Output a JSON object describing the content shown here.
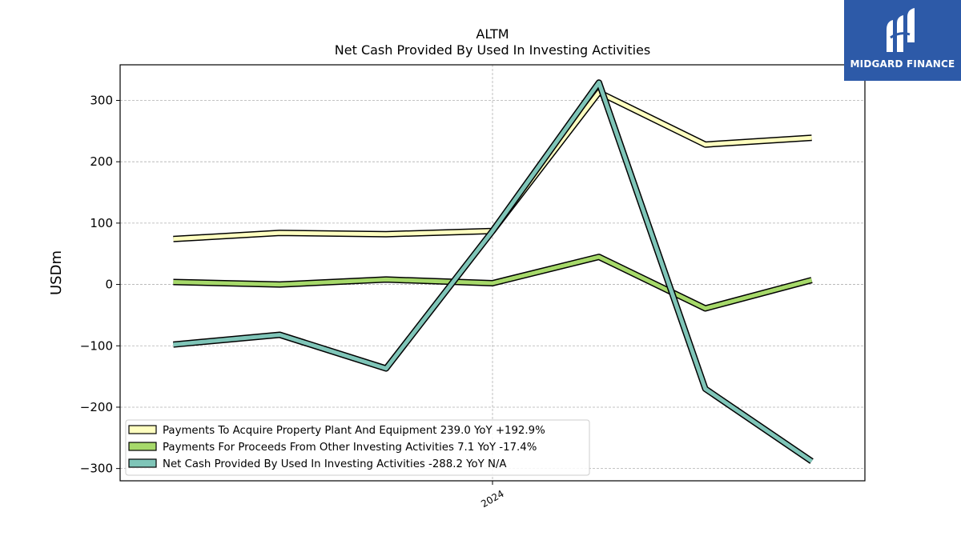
{
  "logo": {
    "text": "MIDGARD FINANCE",
    "bg_color": "#2d5aa8"
  },
  "chart_data": {
    "type": "line",
    "title": "ALTM",
    "subtitle": "Net Cash Provided By Used In Investing Activities",
    "ylabel": "USDm",
    "xlabel": "",
    "ylim": [
      -320,
      358
    ],
    "yticks": [
      -300,
      -200,
      -100,
      0,
      100,
      200,
      300
    ],
    "ytick_labels": [
      "−300",
      "−200",
      "−100",
      "0",
      "100",
      "200",
      "300"
    ],
    "x_count": 7,
    "xlim": [
      -0.5,
      6.5
    ],
    "xtick_positions": [
      3
    ],
    "xtick_labels": [
      "2024"
    ],
    "grid": true,
    "legend_position": "lower-left",
    "series": [
      {
        "name": "Payments To Acquire Property Plant And Equipment",
        "legend": "Payments To Acquire Property Plant And Equipment  239.0 YoY +192.9%",
        "color": "#ffffc0",
        "values": [
          74,
          84,
          82,
          87,
          313,
          228,
          239
        ]
      },
      {
        "name": "Payments For Proceeds From Other Investing Activities",
        "legend": "Payments For Proceeds From Other Investing Activities  7.1 YoY -17.4%",
        "color": "#a6d96a",
        "values": [
          4,
          0,
          8,
          2,
          45,
          -39,
          7.1
        ]
      },
      {
        "name": "Net Cash Provided By Used In Investing Activities",
        "legend": "Net Cash Provided By Used In Investing Activities  -288.2 YoY N/A",
        "color": "#7fc5b8",
        "values": [
          -98,
          -82,
          -137,
          87,
          329,
          -170,
          -288.2
        ]
      }
    ]
  }
}
